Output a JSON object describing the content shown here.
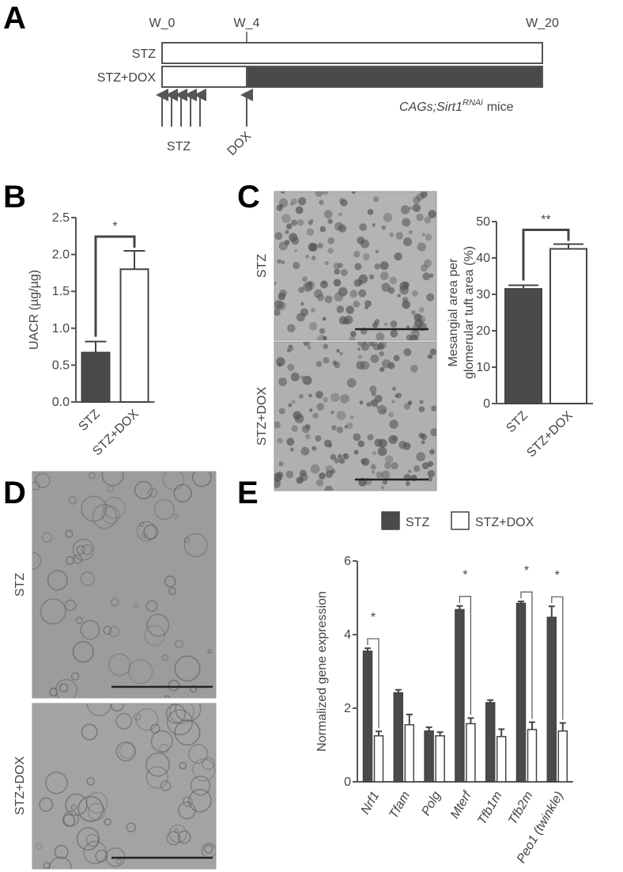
{
  "panel_labels": [
    "A",
    "B",
    "C",
    "D",
    "E"
  ],
  "timeline": {
    "weeks": [
      "W_0",
      "W_4",
      "W_20"
    ],
    "groups": [
      "STZ",
      "STZ+DOX"
    ],
    "arrow_labels": [
      "STZ",
      "DOX"
    ],
    "model": {
      "name": "CAGs;Sirt1",
      "superscript": "RNAi",
      "suffix": "mice"
    }
  },
  "images": {
    "C": [
      "STZ",
      "STZ+DOX"
    ],
    "D": [
      "STZ",
      "STZ+DOX"
    ]
  },
  "chart_data": [
    {
      "type": "bar",
      "y_label": [
        "UACR (µg/µg)"
      ],
      "categories": [
        "STZ",
        "STZ+DOX"
      ],
      "values": [
        0.67,
        1.8
      ],
      "errors": [
        0.15,
        0.25
      ],
      "colors": [
        "#4a4a4a",
        "#ffffff"
      ],
      "significance": "*",
      "ylim": [
        0,
        2.5
      ],
      "yticks": [
        {
          "value": 0,
          "label": "0.0"
        },
        0.5,
        {
          "value": 1,
          "label": "1.0"
        },
        1.5,
        {
          "value": 2,
          "label": "2.0"
        },
        2.5
      ]
    },
    {
      "type": "bar",
      "y_label": [
        "Mesangial area per",
        "glomerular tuft area (%)"
      ],
      "categories": [
        "STZ",
        "STZ+DOX"
      ],
      "values": [
        31.5,
        42.5
      ],
      "errors": [
        1,
        1.3
      ],
      "colors": [
        "#4a4a4a",
        "#ffffff"
      ],
      "significance": "**",
      "ylim": [
        0,
        50
      ],
      "yticks": [
        0,
        10,
        20,
        30,
        40,
        50
      ]
    },
    {
      "type": "grouped-bar",
      "y_label": [
        "Normalized gene expression"
      ],
      "categories": [
        "Nrf1",
        "Tfam",
        "Polg",
        "Mterf",
        "Tfb1m",
        "Tfb2m",
        "Peo1 (twinkle)"
      ],
      "series": [
        {
          "name": "STZ",
          "color": "#4a4a4a",
          "values": [
            3.55,
            2.42,
            1.38,
            4.68,
            2.15,
            4.85,
            4.47
          ],
          "errors": [
            0.08,
            0.08,
            0.1,
            0.1,
            0.07,
            0.05,
            0.3
          ]
        },
        {
          "name": "STZ+DOX",
          "color": "#ffffff",
          "values": [
            1.25,
            1.55,
            1.25,
            1.58,
            1.23,
            1.42,
            1.38
          ],
          "errors": [
            0.12,
            0.28,
            0.1,
            0.15,
            0.2,
            0.2,
            0.22
          ]
        }
      ],
      "significance": [
        "*",
        null,
        null,
        "*",
        null,
        "*",
        "*"
      ],
      "ylim": [
        0,
        6
      ],
      "yticks": [
        0,
        2,
        4,
        6
      ]
    }
  ]
}
